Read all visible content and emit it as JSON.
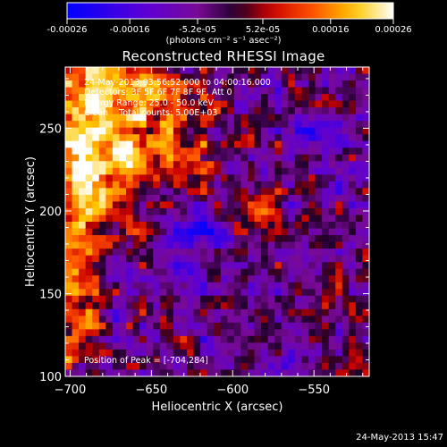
{
  "colorbar": {
    "ticks": [
      "-0.00026",
      "-0.00016",
      "-5.2e-05",
      "5.2e-05",
      "0.00016",
      "0.00026"
    ],
    "units": "(photons cm⁻² s⁻¹ asec⁻²)",
    "min": -0.00026,
    "max": 0.00026
  },
  "chart_data": {
    "type": "heatmap",
    "title": "Reconstructed RHESSI Image",
    "xlabel": "Heliocentric X (arcsec)",
    "ylabel": "Heliocentric Y (arcsec)",
    "xlim": [
      -703,
      -516
    ],
    "ylim": [
      100,
      287
    ],
    "xticks": [
      -700,
      -650,
      -600,
      -550
    ],
    "yticks": [
      100,
      150,
      200,
      250
    ],
    "colormap": "blue-purple-red-yellow-white",
    "peak_position": [
      -704,
      284
    ],
    "annotations": [
      "24-May-2013 03:56:52.000 to 04:00:16.000",
      "Detectors: 3F 5F 6F 7F 8F 9F, Att 0",
      "Energy Range: 25.0 - 50.0 keV",
      "Clean    Total counts: 5.00E+03"
    ],
    "peak_label": "Position of Peak = [-704,284]"
  },
  "footer": {
    "timestamp": "24-May-2013 15:47"
  }
}
